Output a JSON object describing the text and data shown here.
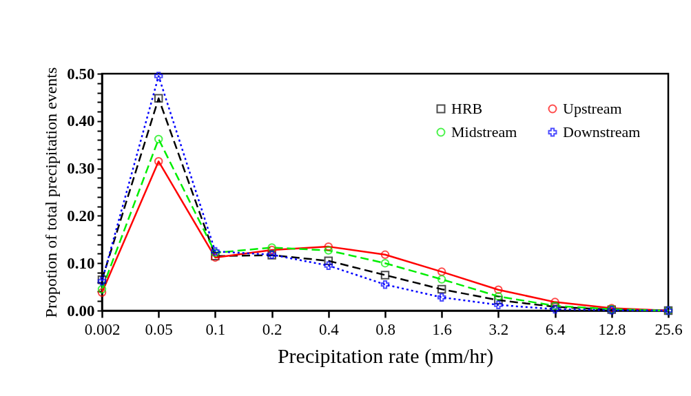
{
  "chart_data": {
    "type": "line",
    "xlabel": "Precipitation rate (mm/hr)",
    "ylabel": "Propotion of total precipitation events",
    "categories": [
      "0.002",
      "0.05",
      "0.1",
      "0.2",
      "0.4",
      "0.8",
      "1.6",
      "3.2",
      "6.4",
      "12.8",
      "25.6"
    ],
    "ylim": [
      0,
      0.5
    ],
    "yticks": [
      {
        "value": 0,
        "label": "0.00"
      },
      {
        "value": 0.02,
        "label": null
      },
      {
        "value": 0.04,
        "label": null
      },
      {
        "value": 0.06,
        "label": null
      },
      {
        "value": 0.08,
        "label": null
      },
      {
        "value": 0.1,
        "label": "0.10"
      },
      {
        "value": 0.12,
        "label": null
      },
      {
        "value": 0.14,
        "label": null
      },
      {
        "value": 0.16,
        "label": null
      },
      {
        "value": 0.18,
        "label": null
      },
      {
        "value": 0.2,
        "label": "0.20"
      },
      {
        "value": 0.22,
        "label": null
      },
      {
        "value": 0.24,
        "label": null
      },
      {
        "value": 0.26,
        "label": null
      },
      {
        "value": 0.28,
        "label": null
      },
      {
        "value": 0.3,
        "label": "0.30"
      },
      {
        "value": 0.32,
        "label": null
      },
      {
        "value": 0.34,
        "label": null
      },
      {
        "value": 0.36,
        "label": null
      },
      {
        "value": 0.38,
        "label": null
      },
      {
        "value": 0.4,
        "label": "0.40"
      },
      {
        "value": 0.42,
        "label": null
      },
      {
        "value": 0.44,
        "label": null
      },
      {
        "value": 0.46,
        "label": null
      },
      {
        "value": 0.48,
        "label": null
      },
      {
        "value": 0.5,
        "label": "0.50"
      }
    ],
    "grid": false,
    "legend": "top right",
    "series": [
      {
        "name": "HRB",
        "color": "#000000",
        "marker": "square",
        "line_style": "dashed",
        "values": [
          0.065,
          0.448,
          0.115,
          0.117,
          0.105,
          0.075,
          0.045,
          0.022,
          0.008,
          0.002,
          0
        ]
      },
      {
        "name": "Upstream",
        "color": "#ff0000",
        "marker": "circle",
        "line_style": "solid",
        "values": [
          0.038,
          0.315,
          0.112,
          0.128,
          0.135,
          0.118,
          0.082,
          0.044,
          0.018,
          0.005,
          0
        ]
      },
      {
        "name": "Midstream",
        "color": "#00ee00",
        "marker": "circle",
        "line_style": "dashed",
        "values": [
          0.045,
          0.362,
          0.122,
          0.133,
          0.127,
          0.1,
          0.066,
          0.03,
          0.01,
          0.003,
          0
        ]
      },
      {
        "name": "Downstream",
        "color": "#0000ff",
        "marker": "cross",
        "line_style": "dotted",
        "values": [
          0.062,
          0.495,
          0.125,
          0.118,
          0.095,
          0.055,
          0.028,
          0.012,
          0.003,
          0.001,
          0
        ]
      }
    ]
  }
}
